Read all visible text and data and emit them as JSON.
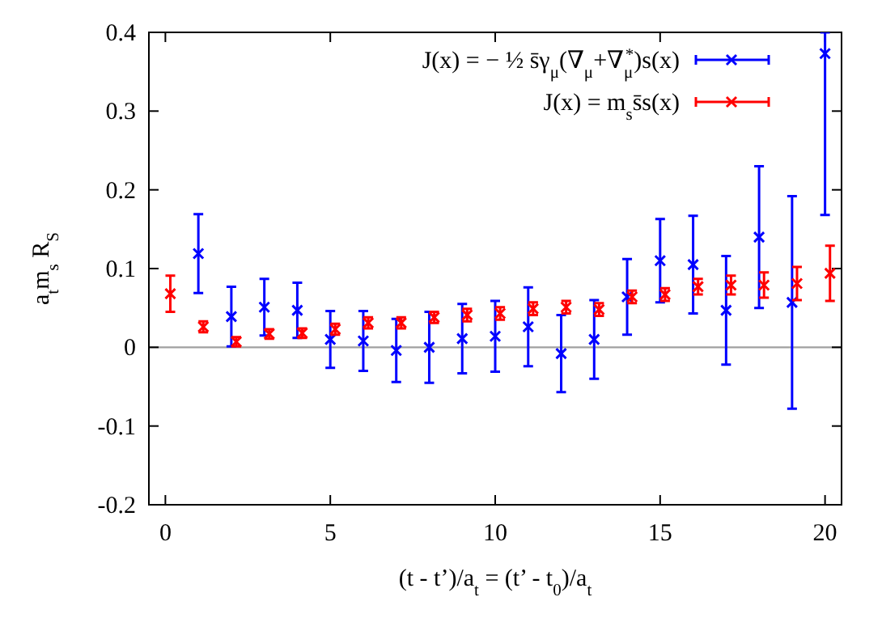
{
  "chart_data": {
    "type": "scatter",
    "xlabel": "(t - t’)/a$_{t}$ = (t’ - t$_{0}$)/a$_{t}$",
    "ylabel": "a$_{t}$m$_{s}$ R$_{S}$",
    "xlim": [
      -0.5,
      20.5
    ],
    "xticks": [
      0,
      5,
      10,
      15,
      20
    ],
    "ylim": [
      -0.2,
      0.4
    ],
    "yticks": [
      -0.2,
      -0.1,
      0,
      0.1,
      0.2,
      0.3,
      0.4
    ],
    "grid": false,
    "legend": "top right",
    "marker": "cross",
    "ref_lines": [
      {
        "axis": "y",
        "value": 0,
        "color": "#a0a0a0"
      }
    ],
    "series": [
      {
        "name": "J(x) = − ½ s̄γ$_{μ}$(∇$_{μ}$+∇$_{μ}$$^{*}$)s(x)",
        "color": "#0000ff",
        "x": [
          1,
          2,
          3,
          4,
          5,
          6,
          7,
          8,
          9,
          10,
          11,
          12,
          13,
          14,
          15,
          16,
          17,
          18,
          19,
          20
        ],
        "values": [
          0.119,
          0.039,
          0.051,
          0.047,
          0.01,
          0.008,
          -0.004,
          0.0,
          0.011,
          0.014,
          0.026,
          -0.008,
          0.01,
          0.064,
          0.11,
          0.105,
          0.047,
          0.14,
          0.057,
          0.373
        ],
        "errors": [
          0.05,
          0.038,
          0.036,
          0.035,
          0.036,
          0.038,
          0.04,
          0.045,
          0.044,
          0.045,
          0.05,
          0.049,
          0.05,
          0.048,
          0.053,
          0.062,
          0.069,
          0.09,
          0.135,
          [
            0.168,
            0.4
          ]
        ]
      },
      {
        "name": "J(x) = m$_{s}$s̄s(x)",
        "color": "#ff0000",
        "x": [
          0.15,
          1.15,
          2.15,
          3.15,
          4.15,
          5.15,
          6.15,
          7.15,
          8.15,
          9.15,
          10.15,
          11.15,
          12.15,
          13.15,
          14.15,
          15.15,
          16.15,
          17.15,
          18.15,
          19.15,
          20.15
        ],
        "values": [
          0.068,
          0.026,
          0.007,
          0.017,
          0.018,
          0.023,
          0.031,
          0.031,
          0.038,
          0.041,
          0.043,
          0.049,
          0.051,
          0.048,
          0.064,
          0.067,
          0.077,
          0.079,
          0.079,
          0.081,
          0.094
        ],
        "errors": [
          0.023,
          0.007,
          0.006,
          0.006,
          0.006,
          0.007,
          0.007,
          0.007,
          0.007,
          0.008,
          0.008,
          0.008,
          0.008,
          0.008,
          0.008,
          0.008,
          0.01,
          0.012,
          0.016,
          0.021,
          0.035
        ]
      }
    ]
  }
}
